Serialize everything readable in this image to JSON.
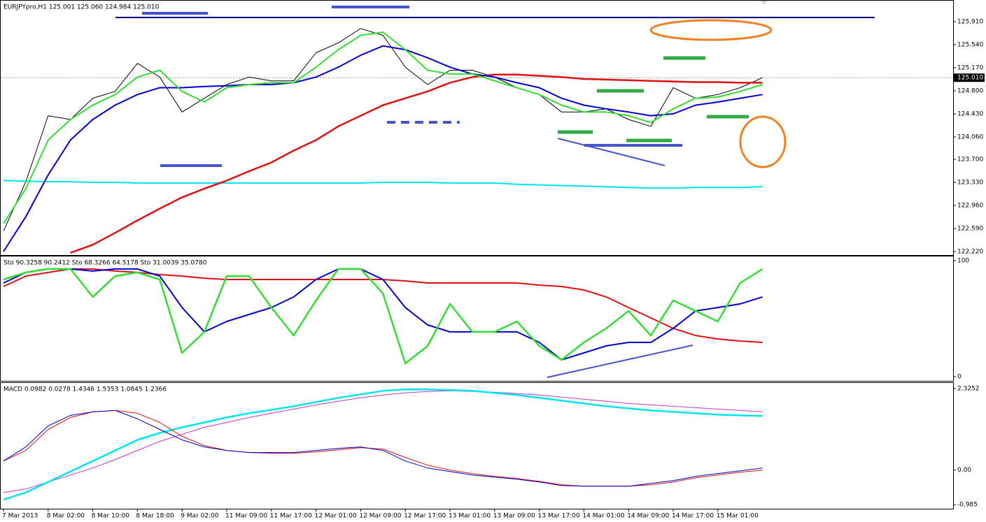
{
  "chart_data": [
    {
      "type": "line",
      "title": "EURJPYpro,H1  125.001 125.060 124.984 125.010",
      "ylim": [
        122.164,
        126.246
      ],
      "yticks": [
        {
          "value": 122.22,
          "label": "122.220"
        },
        {
          "value": 122.59,
          "label": "122.590"
        },
        {
          "value": 122.96,
          "label": "122.960"
        },
        {
          "value": 123.33,
          "label": "123.330"
        },
        {
          "value": 123.7,
          "label": "123.700"
        },
        {
          "value": 124.06,
          "label": "124.060"
        },
        {
          "value": 124.43,
          "label": "124.430"
        },
        {
          "value": 124.8,
          "label": "124.800"
        },
        {
          "value": 125.17,
          "label": "125.170"
        },
        {
          "value": 125.54,
          "label": "125.540"
        },
        {
          "value": 125.91,
          "label": "125.910"
        }
      ],
      "grid": false,
      "last": {
        "value": 125.01,
        "label": "125.010"
      },
      "series": [
        {
          "color": "#000000",
          "values": [
            122.55,
            123.34,
            124.4,
            124.34,
            124.68,
            124.79,
            125.24,
            125.02,
            124.46,
            124.68,
            124.9,
            125.02,
            124.96,
            124.96,
            125.41,
            125.57,
            125.8,
            125.69,
            125.18,
            124.9,
            125.13,
            125.13,
            125.02,
            124.85,
            124.74,
            124.46,
            124.46,
            124.51,
            124.34,
            124.23,
            124.85,
            124.68,
            124.74,
            124.85,
            125.01
          ]
        },
        {
          "color": "#00e5ee",
          "values": [
            123.36,
            123.35,
            123.34,
            123.34,
            123.33,
            123.33,
            123.32,
            123.32,
            123.32,
            123.32,
            123.32,
            123.32,
            123.32,
            123.32,
            123.32,
            123.32,
            123.32,
            123.33,
            123.33,
            123.33,
            123.32,
            123.32,
            123.32,
            123.3,
            123.29,
            123.28,
            123.27,
            123.26,
            123.25,
            123.24,
            123.24,
            123.25,
            123.25,
            123.25,
            123.26
          ]
        },
        {
          "color": "#dd1111",
          "values": [
            null,
            null,
            null,
            122.2,
            122.33,
            122.52,
            122.72,
            122.91,
            123.09,
            123.23,
            123.36,
            123.51,
            123.65,
            123.84,
            124.01,
            124.23,
            124.4,
            124.57,
            124.68,
            124.79,
            124.93,
            125.02,
            125.06,
            125.06,
            125.04,
            125.02,
            124.99,
            124.98,
            124.97,
            124.96,
            124.95,
            124.94,
            124.94,
            124.93,
            124.93
          ]
        },
        {
          "color": "#0000cc",
          "values": [
            122.22,
            122.78,
            123.45,
            124.01,
            124.34,
            124.57,
            124.74,
            124.85,
            124.85,
            124.87,
            124.88,
            124.9,
            124.9,
            124.93,
            125.02,
            125.18,
            125.37,
            125.52,
            125.46,
            125.33,
            125.18,
            125.07,
            125.02,
            124.93,
            124.85,
            124.68,
            124.57,
            124.51,
            124.46,
            124.4,
            124.43,
            124.57,
            124.62,
            124.68,
            124.74
          ]
        },
        {
          "color": "#33dd33",
          "values": [
            122.67,
            123.23,
            124.01,
            124.34,
            124.57,
            124.74,
            125.02,
            125.13,
            124.79,
            124.62,
            124.85,
            124.9,
            124.93,
            124.93,
            125.18,
            125.46,
            125.69,
            125.74,
            125.46,
            125.13,
            125.07,
            125.07,
            124.96,
            124.85,
            124.74,
            124.57,
            124.46,
            124.46,
            124.4,
            124.29,
            124.51,
            124.68,
            124.7,
            124.79,
            124.9
          ]
        }
      ]
    },
    {
      "type": "line",
      "title": "Sto 90.3258 90.2412  Sto 68.3266 64.5178  Sto 31.0039 35.0780",
      "ylim": [
        -3.6,
        103.6
      ],
      "yticks": [
        0,
        100
      ],
      "grid": false,
      "series": [
        {
          "color": "#dd1111",
          "values": [
            77.7,
            86.7,
            89.8,
            92.8,
            92.8,
            91.0,
            89.8,
            88.0,
            86.7,
            84.9,
            83.7,
            83.7,
            83.7,
            83.7,
            83.7,
            83.7,
            83.7,
            83.7,
            82.5,
            80.7,
            80.7,
            80.7,
            80.7,
            80.7,
            78.9,
            77.7,
            74.7,
            68.7,
            59.6,
            50.6,
            41.6,
            35.5,
            32.5,
            30.7,
            29.5
          ]
        },
        {
          "color": "#0000cc",
          "values": [
            80.7,
            89.8,
            92.8,
            92.8,
            91.0,
            92.8,
            92.8,
            86.7,
            59.6,
            38.6,
            47.6,
            53.6,
            59.6,
            68.7,
            83.7,
            92.8,
            92.8,
            83.7,
            59.6,
            44.6,
            38.6,
            38.6,
            38.6,
            38.6,
            29.5,
            14.5,
            20.5,
            26.5,
            29.5,
            29.5,
            41.6,
            56.6,
            59.6,
            62.7,
            68.7
          ]
        },
        {
          "color": "#33dd33",
          "values": [
            83.7,
            89.8,
            92.8,
            92.8,
            68.7,
            86.7,
            89.8,
            83.7,
            20.5,
            38.6,
            86.7,
            86.7,
            59.6,
            35.5,
            65.7,
            92.8,
            92.8,
            71.7,
            11.4,
            26.5,
            62.7,
            38.6,
            38.6,
            47.6,
            26.5,
            14.5,
            29.5,
            41.6,
            56.6,
            35.5,
            65.7,
            56.6,
            47.6,
            80.7,
            92.8
          ]
        }
      ]
    },
    {
      "type": "line",
      "title": "MACD 0.0982 0.0278 1.4346 1.5353 1.0845 1.2366",
      "ylim": [
        -1.102,
        2.485
      ],
      "yticks": [
        -0.985,
        {
          "value": 0,
          "label": "0.00"
        },
        2.3252
      ],
      "grid": false,
      "categories": [
        "7 Mar 2013",
        null,
        "8 Mar 02:00",
        null,
        "8 Mar 10:00",
        null,
        "8 Mar 18:00",
        null,
        "9 Mar 02:00",
        null,
        "11 Mar 09:00",
        null,
        "11 Mar 17:00",
        null,
        "12 Mar 01:00",
        null,
        "12 Mar 09:00",
        null,
        "12 Mar 17:00",
        null,
        "13 Mar 01:00",
        null,
        "13 Mar 09:00",
        null,
        "13 Mar 17:00",
        null,
        "14 Mar 01:00",
        null,
        "14 Mar 09:00",
        null,
        "14 Mar 17:00",
        null,
        "15 Mar 01:00",
        null,
        null
      ],
      "series": [
        {
          "color": "#cc33cc",
          "values": [
            -0.64,
            -0.54,
            -0.34,
            -0.14,
            0.06,
            0.3,
            0.56,
            0.82,
            1.02,
            1.22,
            1.36,
            1.5,
            1.62,
            1.74,
            1.86,
            1.96,
            2.06,
            2.14,
            2.2,
            2.24,
            2.26,
            2.24,
            2.22,
            2.18,
            2.14,
            2.08,
            2.02,
            1.96,
            1.9,
            1.86,
            1.82,
            1.78,
            1.74,
            1.7,
            1.66
          ]
        },
        {
          "color": "#00e5ee",
          "values": [
            -0.84,
            -0.64,
            -0.34,
            -0.04,
            0.26,
            0.56,
            0.86,
            1.06,
            1.22,
            1.36,
            1.5,
            1.62,
            1.72,
            1.82,
            1.94,
            2.06,
            2.16,
            2.26,
            2.3,
            2.3,
            2.28,
            2.26,
            2.2,
            2.14,
            2.06,
            1.98,
            1.9,
            1.82,
            1.76,
            1.7,
            1.66,
            1.62,
            1.58,
            1.56,
            1.54
          ]
        },
        {
          "color": "#dd1111",
          "values": [
            0.26,
            0.56,
            1.16,
            1.5,
            1.66,
            1.7,
            1.62,
            1.36,
            0.96,
            0.7,
            0.56,
            0.5,
            0.48,
            0.48,
            0.52,
            0.58,
            0.64,
            0.6,
            0.36,
            0.14,
            0,
            -0.1,
            -0.18,
            -0.24,
            -0.32,
            -0.42,
            -0.46,
            -0.46,
            -0.46,
            -0.42,
            -0.34,
            -0.22,
            -0.14,
            -0.06,
            0
          ]
        },
        {
          "color": "#0000cc",
          "values": [
            0.26,
            0.66,
            1.26,
            1.56,
            1.66,
            1.7,
            1.46,
            1.16,
            0.86,
            0.66,
            0.56,
            0.5,
            0.5,
            0.5,
            0.56,
            0.62,
            0.66,
            0.56,
            0.26,
            0.06,
            -0.04,
            -0.14,
            -0.2,
            -0.26,
            -0.34,
            -0.44,
            -0.46,
            -0.46,
            -0.46,
            -0.38,
            -0.3,
            -0.18,
            -0.1,
            -0.02,
            0.06
          ]
        }
      ]
    }
  ]
}
